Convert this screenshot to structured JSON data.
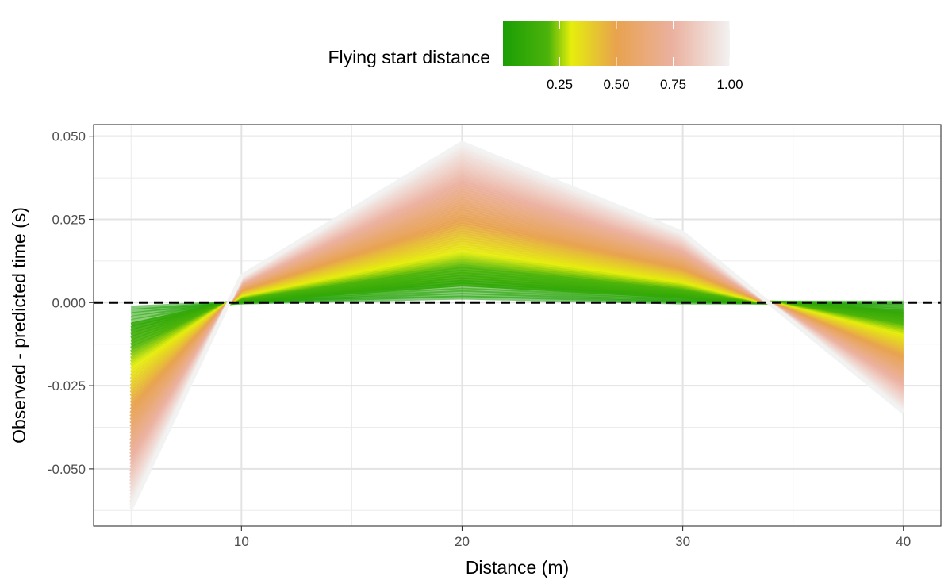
{
  "chart_data": {
    "type": "line",
    "xlabel": "Distance (m)",
    "ylabel": "Observed - predicted time (s)",
    "x": [
      5,
      10,
      20,
      30,
      40
    ],
    "xlim": [
      3.3,
      41.7
    ],
    "ylim": [
      -0.0672,
      0.0535
    ],
    "x_ticks": [
      10,
      20,
      30,
      40
    ],
    "x_tick_labels": [
      "10",
      "20",
      "30",
      "40"
    ],
    "y_ticks": [
      0.05,
      0.025,
      0.0,
      -0.025,
      -0.05
    ],
    "y_tick_labels": [
      "0.050",
      "0.025",
      "0.000",
      "-0.025",
      "-0.050"
    ],
    "grid": true,
    "reference_line": {
      "y": 0,
      "style": "dashed",
      "color": "#000000"
    },
    "series_envelope": {
      "low_flying_start": [
        -0.0015,
        0.0,
        0.0015,
        0.0,
        0.0
      ],
      "high_flying_start": [
        -0.062,
        0.008,
        0.048,
        0.021,
        -0.033
      ]
    },
    "series_count": 60,
    "legend": {
      "title": "Flying start distance",
      "placement": "top",
      "type": "colorbar",
      "range": [
        0.0,
        1.0
      ],
      "ticks": [
        0.25,
        0.5,
        0.75,
        1.0
      ],
      "tick_labels": [
        "0.25",
        "0.50",
        "0.75",
        "1.00"
      ],
      "colors": [
        "#1a9e05",
        "#4cb30a",
        "#e5ee0c",
        "#e8a24f",
        "#ebb1a0",
        "#f2f2f2"
      ],
      "color_stops": [
        0.0,
        0.2,
        0.3,
        0.5,
        0.75,
        1.0
      ]
    }
  }
}
